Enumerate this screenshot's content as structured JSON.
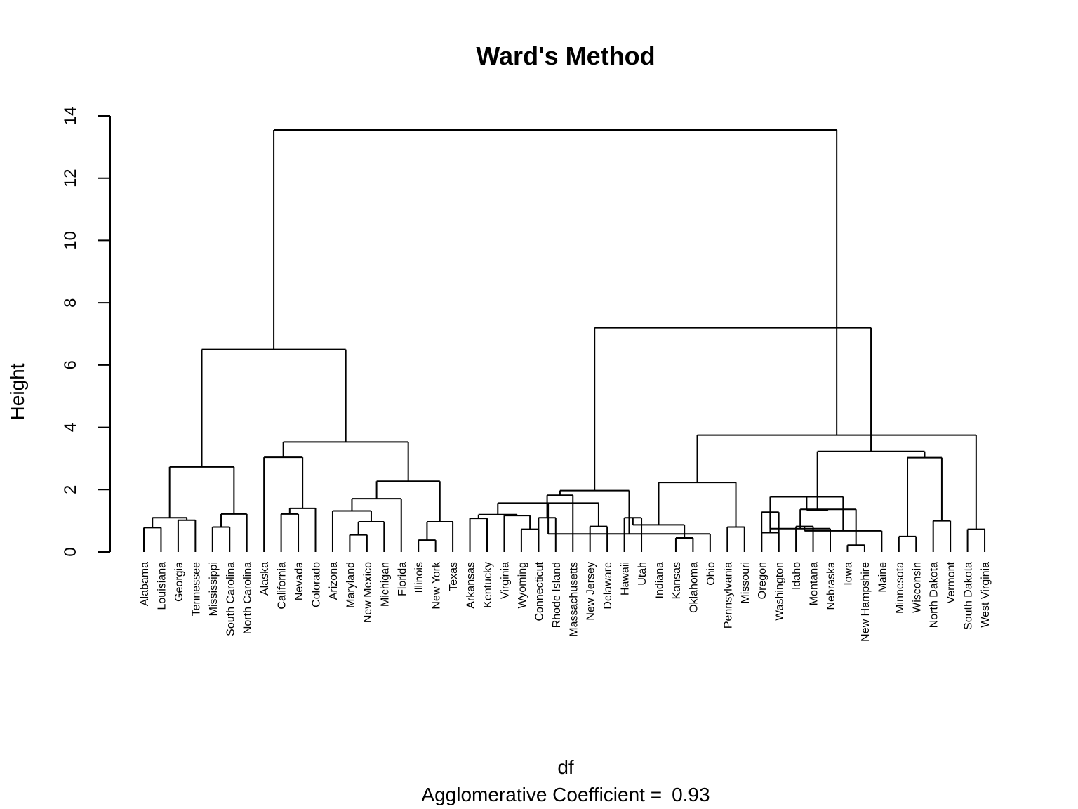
{
  "chart_data": {
    "type": "dendrogram",
    "title": "Ward's Method",
    "ylabel": "Height",
    "xlabel": "df",
    "subtitle_prefix": "Agglomerative Coefficient =",
    "subtitle_value": "0.93",
    "ylim": [
      0,
      14
    ],
    "yticks": [
      0,
      2,
      4,
      6,
      8,
      10,
      12,
      14
    ],
    "leaves": [
      "Alabama",
      "Louisiana",
      "Georgia",
      "Tennessee",
      "Mississippi",
      "South Carolina",
      "North Carolina",
      "Alaska",
      "California",
      "Nevada",
      "Colorado",
      "Arizona",
      "Maryland",
      "New Mexico",
      "Michigan",
      "Florida",
      "Illinois",
      "New York",
      "Texas",
      "Arkansas",
      "Kentucky",
      "Virginia",
      "Wyoming",
      "Connecticut",
      "Rhode Island",
      "Massachusetts",
      "New Jersey",
      "Delaware",
      "Hawaii",
      "Utah",
      "Indiana",
      "Kansas",
      "Oklahoma",
      "Ohio",
      "Pennsylvania",
      "Missouri",
      "Oregon",
      "Washington",
      "Idaho",
      "Montana",
      "Nebraska",
      "Iowa",
      "New Hampshire",
      "Maine",
      "Minnesota",
      "Wisconsin",
      "North Dakota",
      "Vermont",
      "South Dakota",
      "West Virginia"
    ],
    "merges": [
      [
        -1,
        -2,
        0.78
      ],
      [
        -3,
        -4,
        1.02
      ],
      [
        1,
        2,
        1.1
      ],
      [
        -5,
        -6,
        0.8
      ],
      [
        -7,
        4,
        1.22
      ],
      [
        3,
        5,
        2.73
      ],
      [
        -9,
        -10,
        1.22
      ],
      [
        -11,
        7,
        1.4
      ],
      [
        -8,
        8,
        3.04
      ],
      [
        -13,
        -14,
        0.55
      ],
      [
        -15,
        10,
        0.97
      ],
      [
        -12,
        11,
        1.32
      ],
      [
        -16,
        12,
        1.71
      ],
      [
        -17,
        -18,
        0.38
      ],
      [
        -19,
        14,
        0.97
      ],
      [
        13,
        15,
        2.27
      ],
      [
        9,
        16,
        3.53
      ],
      [
        6,
        17,
        6.5
      ],
      [
        -20,
        -21,
        1.08
      ],
      [
        -23,
        -24,
        0.73
      ],
      [
        -22,
        20,
        1.17
      ],
      [
        19,
        21,
        1.2
      ],
      [
        -24,
        -25,
        1.1
      ],
      [
        -27,
        -28,
        0.82
      ],
      [
        -26,
        23,
        1.82
      ],
      [
        22,
        24,
        1.57
      ],
      [
        -29,
        -30,
        1.1
      ],
      [
        -32,
        -33,
        0.45
      ],
      [
        -34,
        26,
        0.58
      ],
      [
        -35,
        -36,
        0.8
      ],
      [
        27,
        28,
        0.87
      ],
      [
        25,
        29,
        1.97
      ],
      [
        -37,
        -38,
        1.28
      ],
      [
        -37,
        -38,
        0.62
      ],
      [
        -39,
        -40,
        0.82
      ],
      [
        -41,
        33,
        0.75
      ],
      [
        -42,
        -43,
        0.22
      ],
      [
        -44,
        35,
        0.68
      ],
      [
        -45,
        -46,
        0.5
      ],
      [
        36,
        37,
        1.37
      ],
      [
        34,
        38,
        1.77
      ],
      [
        -47,
        -48,
        1.0
      ],
      [
        -49,
        -50,
        0.73
      ],
      [
        40,
        41,
        1.35
      ],
      [
        39,
        42,
        3.03
      ],
      [
        30,
        31,
        2.23
      ],
      [
        44,
        45,
        3.23
      ],
      [
        43,
        46,
        3.75
      ],
      [
        32,
        47,
        7.2
      ],
      [
        18,
        48,
        13.55
      ]
    ]
  }
}
